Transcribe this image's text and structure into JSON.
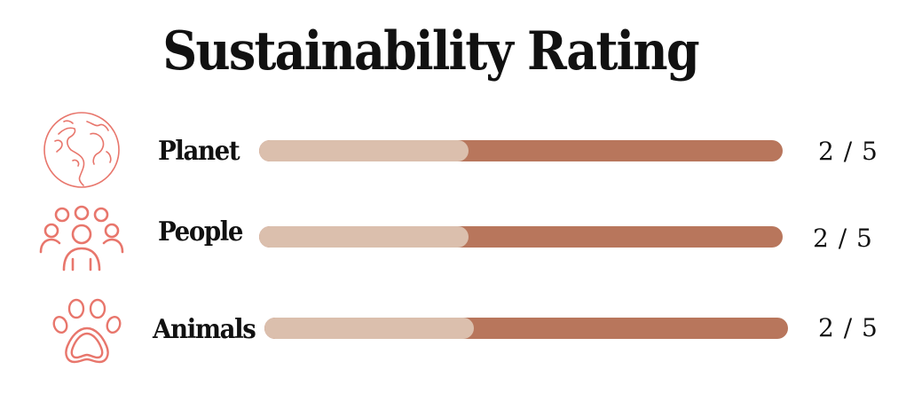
{
  "title": "Sustainability Rating",
  "colors": {
    "icon": "#e8766c",
    "bar_filled": "#dbbfad",
    "bar_track": "#b8765c",
    "text": "#111111"
  },
  "ratings": [
    {
      "icon": "globe-icon",
      "label": "Planet",
      "score": "2 / 5",
      "value": 2,
      "max": 5
    },
    {
      "icon": "people-group-icon",
      "label": "People",
      "score": "2 / 5",
      "value": 2,
      "max": 5
    },
    {
      "icon": "paw-print-icon",
      "label": "Animals",
      "score": "2 / 5",
      "value": 2,
      "max": 5
    }
  ]
}
